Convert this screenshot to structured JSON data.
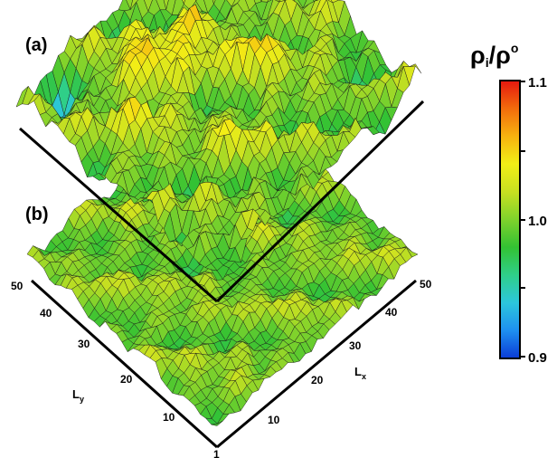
{
  "chart_data": [
    {
      "type": "surface",
      "panel_label": "(a)",
      "colorscale": "jet",
      "z_range": [
        0.9,
        1.1
      ],
      "z_spread": "wide: values reach about 1.1 (red peaks) and about 0.9 (blue pits)"
    },
    {
      "type": "surface",
      "panel_label": "(b)",
      "colorscale": "jet",
      "z_range": [
        0.9,
        1.1
      ],
      "z_spread": "narrow: values stay near 1.0 (green-yellow)",
      "x_axis": {
        "label_main": "L",
        "label_sub": "x",
        "ticks": [
          "1",
          "10",
          "20",
          "30",
          "40",
          "50"
        ]
      },
      "y_axis": {
        "label_main": "L",
        "label_sub": "y",
        "ticks": [
          "10",
          "20",
          "30",
          "40",
          "50"
        ]
      }
    }
  ],
  "colorbar": {
    "title_main": "ρ",
    "title_sub": "i",
    "title_sep": "/ρ",
    "title_sup": "o",
    "ticks": [
      "1.1",
      "1.0",
      "0.9"
    ],
    "range": [
      0.9,
      1.1
    ],
    "colors": [
      "#0b3bd6",
      "#1e8ff0",
      "#2cc6dc",
      "#2fcf8a",
      "#33c233",
      "#7fd22c",
      "#c8e021",
      "#f2ef16",
      "#f7b20f",
      "#f26b0c",
      "#e5170f"
    ]
  }
}
